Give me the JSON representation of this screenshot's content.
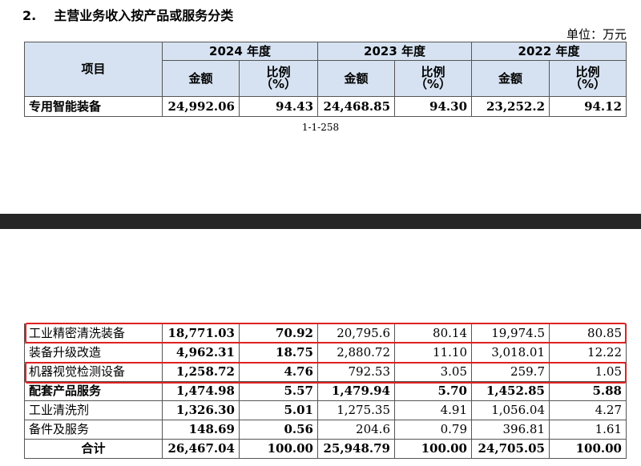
{
  "heading": {
    "number": "2.",
    "title": "主营业务收入按产品或服务分类"
  },
  "unit": "单位：万元",
  "header": {
    "item": "项目",
    "years": [
      "2024 年度",
      "2023 年度",
      "2022 年度"
    ],
    "amount": "金额",
    "ratio_line1": "比例",
    "ratio_line2": "（%）"
  },
  "top_row": {
    "label": "专用智能装备",
    "values": [
      "24,992.06",
      "94.43",
      "24,468.85",
      "94.30",
      "23,252.2",
      "94.12"
    ]
  },
  "page_number": "1-1-258",
  "rows": [
    {
      "label": "工业精密清洗装备",
      "values": [
        "18,771.03",
        "70.92",
        "20,795.6",
        "80.14",
        "19,974.5",
        "80.85"
      ],
      "bold": false,
      "highlighted": true
    },
    {
      "label": "装备升级改造",
      "values": [
        "4,962.31",
        "18.75",
        "2,880.72",
        "11.10",
        "3,018.01",
        "12.22"
      ],
      "bold": false,
      "highlighted": false
    },
    {
      "label": "机器视觉检测设备",
      "values": [
        "1,258.72",
        "4.76",
        "792.53",
        "3.05",
        "259.7",
        "1.05"
      ],
      "bold": false,
      "highlighted": true
    },
    {
      "label": "配套产品服务",
      "values": [
        "1,474.98",
        "5.57",
        "1,479.94",
        "5.70",
        "1,452.85",
        "5.88"
      ],
      "bold": true,
      "highlighted": false
    },
    {
      "label": "工业清洗剂",
      "values": [
        "1,326.30",
        "5.01",
        "1,275.35",
        "4.91",
        "1,056.04",
        "4.27"
      ],
      "bold": false,
      "highlighted": false
    },
    {
      "label": "备件及服务",
      "values": [
        "148.69",
        "0.56",
        "204.6",
        "0.79",
        "396.81",
        "1.61"
      ],
      "bold": false,
      "highlighted": false
    },
    {
      "label": "合计",
      "values": [
        "26,467.04",
        "100.00",
        "25,948.79",
        "100.00",
        "24,705.05",
        "100.00"
      ],
      "bold": true,
      "highlighted": false
    }
  ],
  "colors": {
    "header_bg": "#d6e2f1",
    "highlight": "#e02020",
    "separator": "#262626"
  }
}
